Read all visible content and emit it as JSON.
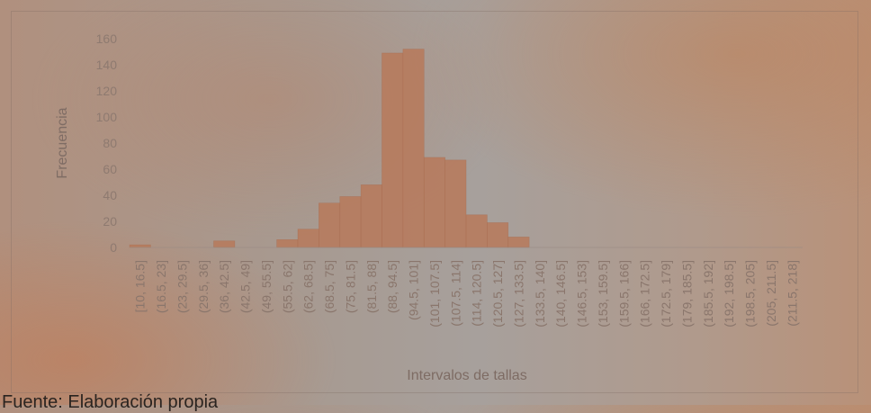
{
  "caption": "Fuente: Elaboración propia",
  "colors": {
    "bar": "#b7795a",
    "bar_edge": "#a8694c",
    "axis": "#9a8a84"
  },
  "chart_data": {
    "type": "bar",
    "title": "",
    "xlabel": "Intervalos de tallas",
    "ylabel": "Frecuencia",
    "ylim": [
      0,
      160
    ],
    "yticks": [
      0,
      20,
      40,
      60,
      80,
      100,
      120,
      140,
      160
    ],
    "grid": false,
    "categories": [
      "[10, 16.5]",
      "(16.5, 23]",
      "(23, 29.5]",
      "(29.5, 36]",
      "(36, 42.5]",
      "(42.5, 49]",
      "(49, 55.5]",
      "(55.5, 62]",
      "(62, 68.5]",
      "(68.5, 75]",
      "(75, 81.5]",
      "(81.5, 88]",
      "(88, 94.5]",
      "(94.5, 101]",
      "(101, 107.5]",
      "(107.5, 114]",
      "(114, 120.5]",
      "(120.5, 127]",
      "(127, 133.5]",
      "(133.5, 140]",
      "(140, 146.5]",
      "(146.5, 153]",
      "(153, 159.5]",
      "(159.5, 166]",
      "(166, 172.5]",
      "(172.5, 179]",
      "(179, 185.5]",
      "(185.5, 192]",
      "(192, 198.5]",
      "(198.5, 205]",
      "(205, 211.5]",
      "(211.5, 218]"
    ],
    "values": [
      2,
      0,
      0,
      0,
      5,
      0,
      0,
      6,
      14,
      34,
      39,
      48,
      149,
      152,
      69,
      67,
      25,
      19,
      8,
      0,
      0,
      0,
      0,
      0,
      0,
      0,
      0,
      0,
      0,
      0,
      0,
      0
    ]
  }
}
